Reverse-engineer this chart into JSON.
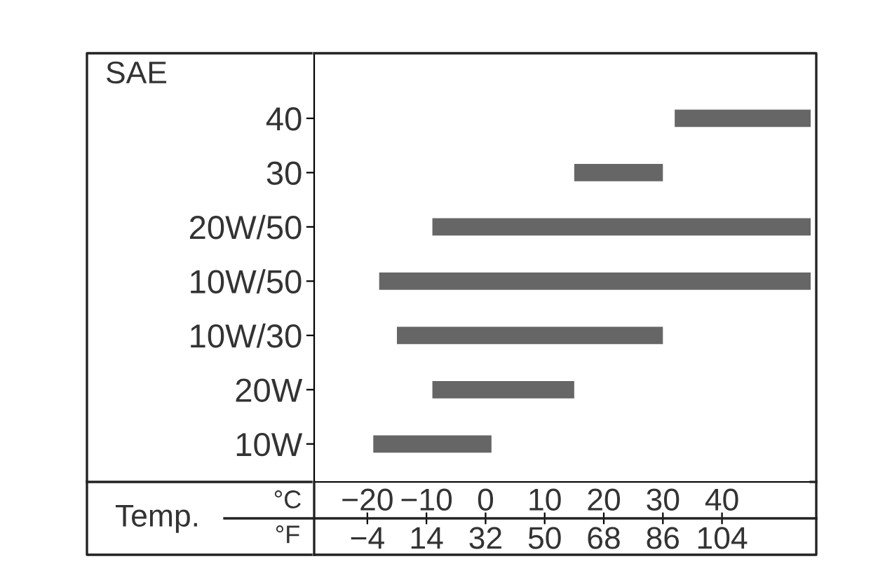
{
  "chart_data": {
    "type": "bar",
    "orientation": "horizontal",
    "ylabel": "SAE",
    "xlabel": "°C",
    "x2label": "°F",
    "annotations": [
      "Temp."
    ],
    "categories": [
      "40",
      "30",
      "20W/50",
      "10W/50",
      "10W/30",
      "20W",
      "10W"
    ],
    "base": [
      32,
      15,
      -9,
      -18,
      -15,
      -9,
      -19
    ],
    "values": [
      23,
      15,
      64,
      73,
      45,
      24,
      20
    ],
    "color": "#666666",
    "xlim": [
      -29,
      55
    ],
    "xticks": [
      {
        "value": -20,
        "label": "−20"
      },
      {
        "value": -10,
        "label": "−10"
      },
      0,
      10,
      20,
      30,
      40
    ],
    "x2lim": [
      -20.2,
      131
    ],
    "x2ticks": [
      {
        "value": -4,
        "label": "−4"
      },
      14,
      32,
      50,
      68,
      86,
      104
    ],
    "grid": false
  }
}
